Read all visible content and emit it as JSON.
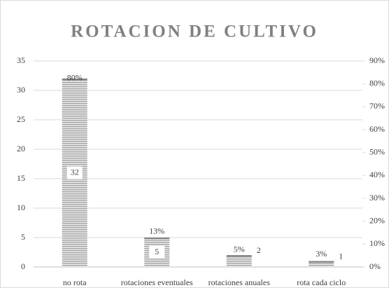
{
  "chart_data": {
    "type": "bar",
    "title": "ROTACION DE CULTIVO",
    "categories": [
      "no rota",
      "rotaciones eventuales",
      "rotaciones anuales",
      "rota cada ciclo"
    ],
    "series": [
      {
        "color": "#a6a6a6",
        "values": [
          32,
          5,
          2,
          1
        ]
      },
      {
        "axis": "y2",
        "values": [
          80,
          13,
          5,
          3
        ],
        "value_labels": [
          "80%",
          "13%",
          "5%",
          "3%"
        ]
      }
    ],
    "ylim": [
      0,
      35
    ],
    "yticks": [
      0,
      5,
      10,
      15,
      20,
      25,
      30,
      35
    ],
    "y2lim": [
      0,
      90
    ],
    "y2ticks": [
      {
        "value": 0,
        "label": "0%"
      },
      {
        "value": 10,
        "label": "10%"
      },
      {
        "value": 20,
        "label": "20%"
      },
      {
        "value": 30,
        "label": "30%"
      },
      {
        "value": 40,
        "label": "40%"
      },
      {
        "value": 50,
        "label": "50%"
      },
      {
        "value": 60,
        "label": "60%"
      },
      {
        "value": 70,
        "label": "70%"
      },
      {
        "value": 80,
        "label": "80%"
      },
      {
        "value": 90,
        "label": "90%"
      }
    ],
    "grid": true
  }
}
